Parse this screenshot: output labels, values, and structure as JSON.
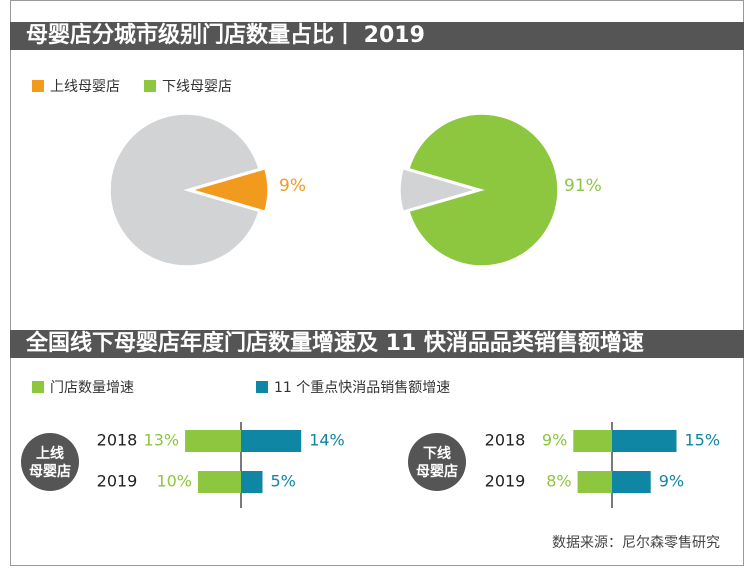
{
  "colors": {
    "orange": "#f29a1d",
    "green": "#8dc63f",
    "teal": "#0e86a4",
    "gray_slice": "#d1d3d4",
    "banner": "#555555",
    "circle_label": "#555555"
  },
  "chart_data": [
    {
      "type": "pie",
      "title": "母婴店分城市级别门店数量占比丨 2019",
      "legend": [
        "上线母婴店",
        "下线母婴店"
      ],
      "pies": [
        {
          "highlight": "上线母婴店",
          "value": 9,
          "label": "9%",
          "rest": 91
        },
        {
          "highlight": "下线母婴店",
          "value": 91,
          "label": "91%",
          "rest": 9
        }
      ]
    },
    {
      "type": "bar",
      "title": "全国线下母婴店年度门店数量增速及 11 快消品品类销售额增速",
      "legend": [
        "门店数量增速",
        "11 个重点快消品销售额增速"
      ],
      "groups": [
        {
          "name": "上线\n母婴店",
          "name_lines": [
            "上线",
            "母婴店"
          ],
          "categories": [
            "2018",
            "2019"
          ],
          "series": [
            {
              "name": "门店数量增速",
              "values": [
                13,
                10
              ],
              "labels": [
                "13%",
                "10%"
              ]
            },
            {
              "name": "11 个重点快消品销售额增速",
              "values": [
                14,
                5
              ],
              "labels": [
                "14%",
                "5%"
              ]
            }
          ]
        },
        {
          "name": "下线\n母婴店",
          "name_lines": [
            "下线",
            "母婴店"
          ],
          "categories": [
            "2018",
            "2019"
          ],
          "series": [
            {
              "name": "门店数量增速",
              "values": [
                9,
                8
              ],
              "labels": [
                "9%",
                "8%"
              ]
            },
            {
              "name": "11 个重点快消品销售额增速",
              "values": [
                15,
                9
              ],
              "labels": [
                "15%",
                "9%"
              ]
            }
          ]
        }
      ]
    }
  ],
  "source": "数据来源：尼尔森零售研究"
}
